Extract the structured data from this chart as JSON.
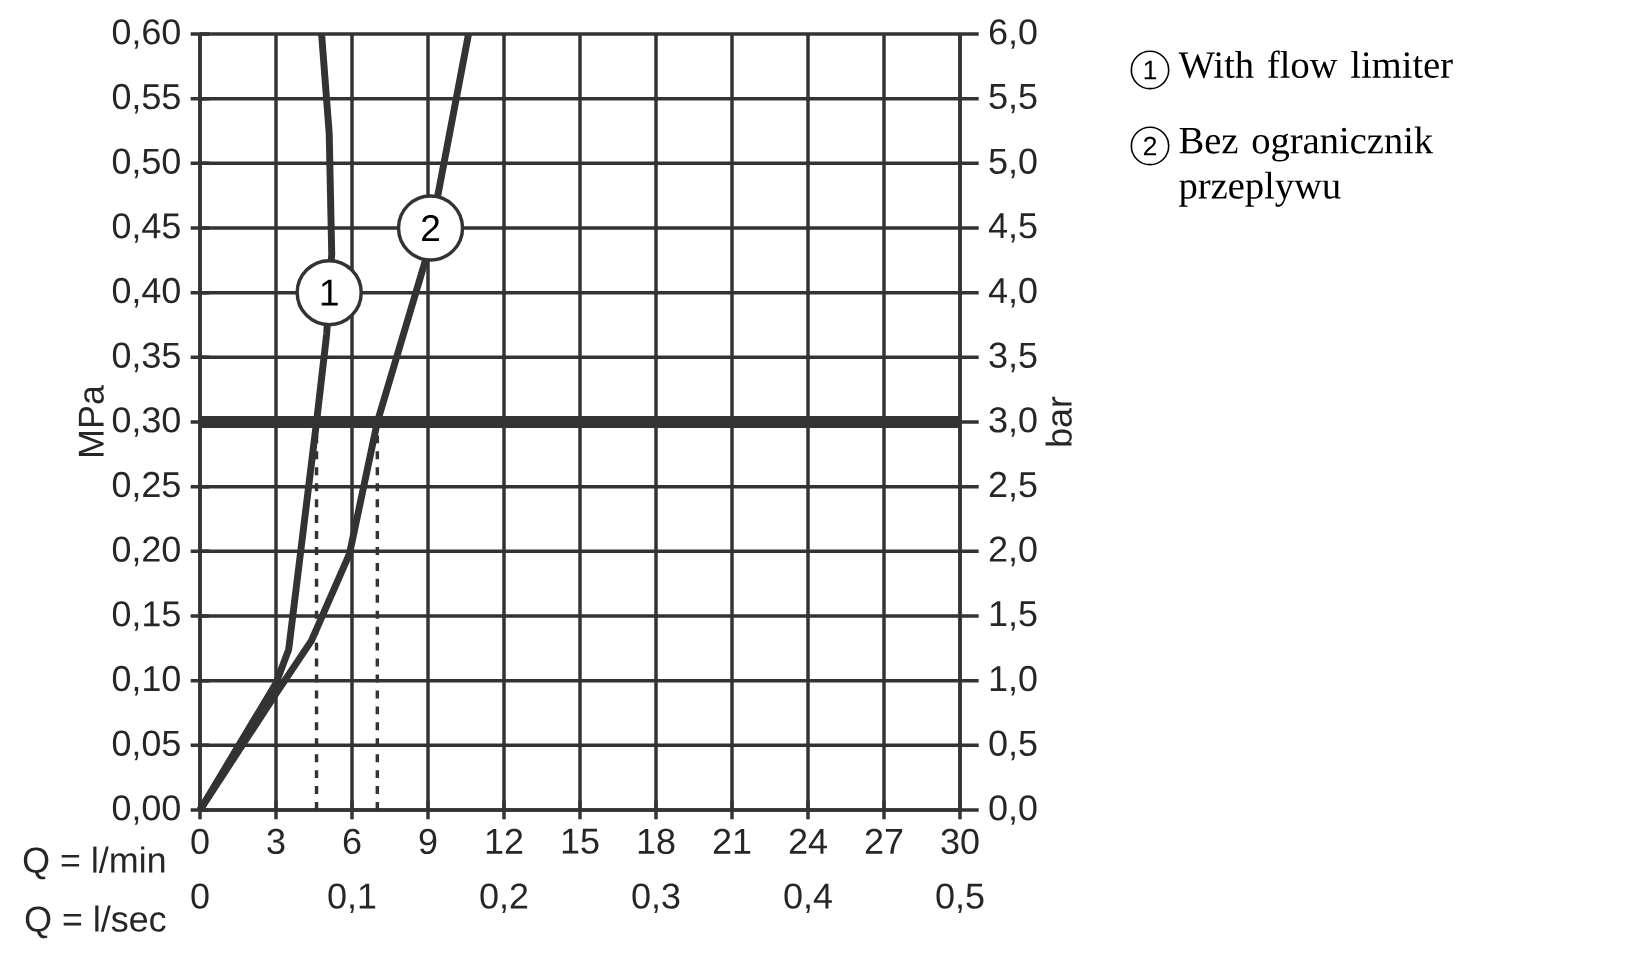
{
  "chart_data": {
    "type": "line",
    "xlabel": "Q = l/min",
    "x2label": "Q = l/sec",
    "ylabel": "MPa",
    "y2label": "bar",
    "series": [
      {
        "name": "With flow limiter",
        "color": "#333333",
        "x": [
          0,
          3,
          3.5,
          3.9,
          4.6,
          5.0,
          5.2,
          5.1,
          4.8
        ],
        "values": [
          0,
          0.098,
          0.124,
          0.188,
          0.3,
          0.368,
          0.43,
          0.523,
          0.6
        ]
      },
      {
        "name": "Bez ogranicznik przeplywu",
        "color": "#333333",
        "x": [
          0,
          3,
          4.4,
          5.9,
          7.0,
          8.9,
          10.6
        ],
        "values": [
          0,
          0.09,
          0.131,
          0.198,
          0.3,
          0.425,
          0.6
        ]
      }
    ],
    "xlim": [
      0,
      30
    ],
    "xticks": [
      0,
      3,
      6,
      9,
      12,
      15,
      18,
      21,
      24,
      27,
      30
    ],
    "x2lim": [
      0,
      0.5
    ],
    "x2ticks": [
      0,
      {
        "value": 0.1,
        "label": "0,1"
      },
      {
        "value": 0.2,
        "label": "0,2"
      },
      {
        "value": 0.3,
        "label": "0,3"
      },
      {
        "value": 0.4,
        "label": "0,4"
      },
      {
        "value": 0.5,
        "label": "0,5"
      }
    ],
    "ylim": [
      0,
      0.6
    ],
    "yticks": [
      {
        "value": 0,
        "label": "0,00"
      },
      {
        "value": 0.05,
        "label": "0,05"
      },
      {
        "value": 0.1,
        "label": "0,10"
      },
      {
        "value": 0.15,
        "label": "0,15"
      },
      {
        "value": 0.2,
        "label": "0,20"
      },
      {
        "value": 0.25,
        "label": "0,25"
      },
      {
        "value": 0.3,
        "label": "0,30"
      },
      {
        "value": 0.35,
        "label": "0,35"
      },
      {
        "value": 0.4,
        "label": "0,40"
      },
      {
        "value": 0.45,
        "label": "0,45"
      },
      {
        "value": 0.5,
        "label": "0,50"
      },
      {
        "value": 0.55,
        "label": "0,55"
      },
      {
        "value": 0.6,
        "label": "0,60"
      }
    ],
    "y2lim": [
      0,
      6
    ],
    "y2ticks": [
      {
        "value": 0,
        "label": "0,0"
      },
      {
        "value": 0.5,
        "label": "0,5"
      },
      {
        "value": 1,
        "label": "1,0"
      },
      {
        "value": 1.5,
        "label": "1,5"
      },
      {
        "value": 2,
        "label": "2,0"
      },
      {
        "value": 2.5,
        "label": "2,5"
      },
      {
        "value": 3,
        "label": "3,0"
      },
      {
        "value": 3.5,
        "label": "3,5"
      },
      {
        "value": 4,
        "label": "4,0"
      },
      {
        "value": 4.5,
        "label": "4,5"
      },
      {
        "value": 5,
        "label": "5,0"
      },
      {
        "value": 5.5,
        "label": "5,5"
      },
      {
        "value": 6,
        "label": "6,0"
      }
    ],
    "ref_lines": [
      {
        "axis": "y",
        "value": 0.3,
        "color": "#333333"
      },
      {
        "axis": "x",
        "value": 4.6,
        "color": "#333333",
        "line_style": "dashed"
      },
      {
        "axis": "x",
        "value": 7.0,
        "color": "#333333",
        "line_style": "dashed"
      }
    ],
    "annotations": [
      {
        "text": "1",
        "x": 5.1,
        "y": 0.4
      },
      {
        "text": "2",
        "x": 9.1,
        "y": 0.45
      }
    ],
    "grid": true,
    "legend": "top right"
  }
}
